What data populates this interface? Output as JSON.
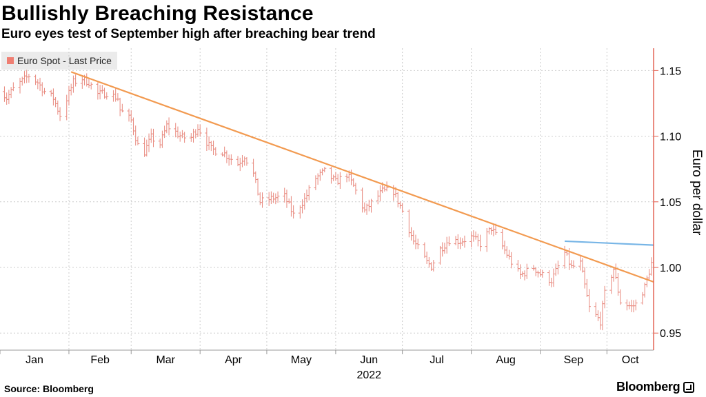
{
  "title": "Bullishly Breaching Resistance",
  "subtitle": "Euro eyes test of September high after breaching bear trend",
  "legend": {
    "label": "Euro Spot - Last Price"
  },
  "source": "Source: Bloomberg",
  "brand": "Bloomberg",
  "colors": {
    "price": "#e8897e",
    "trendline": "#f29a50",
    "resistance": "#77b5e6",
    "axis": "#e05a4a",
    "grid": "#cccccc"
  },
  "chart_data": {
    "type": "line",
    "style": "ohlc-bars",
    "title": "Bullishly Breaching Resistance",
    "subtitle": "Euro eyes test of September high after breaching bear trend",
    "ylabel": "Euro per dollar",
    "xlabel": "2022",
    "ylim": [
      0.937,
      1.167
    ],
    "yticks": [
      0.95,
      1.0,
      1.05,
      1.1,
      1.15
    ],
    "ytick_labels": [
      "0.95",
      "1.00",
      "1.05",
      "1.10",
      "1.15"
    ],
    "x_range": [
      "2022-01-01",
      "2022-10-22"
    ],
    "x_ticks": [
      {
        "label": "Jan",
        "date": "2022-01-01"
      },
      {
        "label": "Feb",
        "date": "2022-02-01"
      },
      {
        "label": "Mar",
        "date": "2022-03-01"
      },
      {
        "label": "Apr",
        "date": "2022-04-01"
      },
      {
        "label": "May",
        "date": "2022-05-01"
      },
      {
        "label": "Jun",
        "date": "2022-06-01"
      },
      {
        "label": "Jul",
        "date": "2022-07-01"
      },
      {
        "label": "Aug",
        "date": "2022-08-01"
      },
      {
        "label": "Sep",
        "date": "2022-09-01"
      },
      {
        "label": "Oct",
        "date": "2022-10-01"
      }
    ],
    "grid": true,
    "legend_position": "top-left",
    "series": [
      {
        "name": "Euro Spot - Last Price",
        "type": "ohlc",
        "anchors": [
          [
            "2021-12-31",
            1.137
          ],
          [
            "2022-01-04",
            1.129
          ],
          [
            "2022-01-07",
            1.136
          ],
          [
            "2022-01-11",
            1.142
          ],
          [
            "2022-01-14",
            1.146
          ],
          [
            "2022-01-18",
            1.141
          ],
          [
            "2022-01-21",
            1.134
          ],
          [
            "2022-01-25",
            1.129
          ],
          [
            "2022-01-28",
            1.116
          ],
          [
            "2022-02-03",
            1.141
          ],
          [
            "2022-02-07",
            1.144
          ],
          [
            "2022-02-10",
            1.141
          ],
          [
            "2022-02-14",
            1.132
          ],
          [
            "2022-02-18",
            1.133
          ],
          [
            "2022-02-23",
            1.129
          ],
          [
            "2022-02-24",
            1.12
          ],
          [
            "2022-03-01",
            1.112
          ],
          [
            "2022-03-04",
            1.093
          ],
          [
            "2022-03-07",
            1.088
          ],
          [
            "2022-03-10",
            1.099
          ],
          [
            "2022-03-14",
            1.094
          ],
          [
            "2022-03-17",
            1.108
          ],
          [
            "2022-03-21",
            1.103
          ],
          [
            "2022-03-24",
            1.099
          ],
          [
            "2022-03-28",
            1.099
          ],
          [
            "2022-03-31",
            1.107
          ],
          [
            "2022-04-01",
            1.104
          ],
          [
            "2022-04-06",
            1.09
          ],
          [
            "2022-04-11",
            1.088
          ],
          [
            "2022-04-14",
            1.084
          ],
          [
            "2022-04-18",
            1.079
          ],
          [
            "2022-04-21",
            1.085
          ],
          [
            "2022-04-25",
            1.071
          ],
          [
            "2022-04-28",
            1.05
          ],
          [
            "2022-05-04",
            1.053
          ],
          [
            "2022-05-09",
            1.054
          ],
          [
            "2022-05-13",
            1.04
          ],
          [
            "2022-05-18",
            1.052
          ],
          [
            "2022-05-23",
            1.068
          ],
          [
            "2022-05-27",
            1.073
          ],
          [
            "2022-06-01",
            1.065
          ],
          [
            "2022-06-06",
            1.071
          ],
          [
            "2022-06-09",
            1.062
          ],
          [
            "2022-06-14",
            1.043
          ],
          [
            "2022-06-17",
            1.049
          ],
          [
            "2022-06-22",
            1.058
          ],
          [
            "2022-06-27",
            1.058
          ],
          [
            "2022-07-01",
            1.043
          ],
          [
            "2022-07-06",
            1.02
          ],
          [
            "2022-07-12",
            1.004
          ],
          [
            "2022-07-14",
            1.001
          ],
          [
            "2022-07-18",
            1.014
          ],
          [
            "2022-07-22",
            1.021
          ],
          [
            "2022-07-27",
            1.02
          ],
          [
            "2022-08-01",
            1.023
          ],
          [
            "2022-08-05",
            1.018
          ],
          [
            "2022-08-10",
            1.03
          ],
          [
            "2022-08-15",
            1.016
          ],
          [
            "2022-08-19",
            1.004
          ],
          [
            "2022-08-23",
            0.994
          ],
          [
            "2022-08-26",
            0.997
          ],
          [
            "2022-08-29",
            1.0
          ],
          [
            "2022-09-01",
            0.995
          ],
          [
            "2022-09-06",
            0.99
          ],
          [
            "2022-09-12",
            1.011
          ],
          [
            "2022-09-15",
            1.0
          ],
          [
            "2022-09-19",
            1.003
          ],
          [
            "2022-09-23",
            0.969
          ],
          [
            "2022-09-28",
            0.959
          ],
          [
            "2022-09-30",
            0.98
          ],
          [
            "2022-10-04",
            0.999
          ],
          [
            "2022-10-07",
            0.974
          ],
          [
            "2022-10-12",
            0.97
          ],
          [
            "2022-10-14",
            0.972
          ],
          [
            "2022-10-18",
            0.985
          ],
          [
            "2022-10-21",
            1.003
          ],
          [
            "2022-10-24",
            1.008
          ]
        ]
      },
      {
        "name": "Bear trendline",
        "type": "line",
        "points": [
          [
            "2022-02-02",
            1.149
          ],
          [
            "2022-10-22",
            0.989
          ]
        ]
      },
      {
        "name": "September high",
        "type": "line",
        "points": [
          [
            "2022-09-12",
            1.02
          ],
          [
            "2022-10-22",
            1.017
          ]
        ]
      }
    ]
  }
}
